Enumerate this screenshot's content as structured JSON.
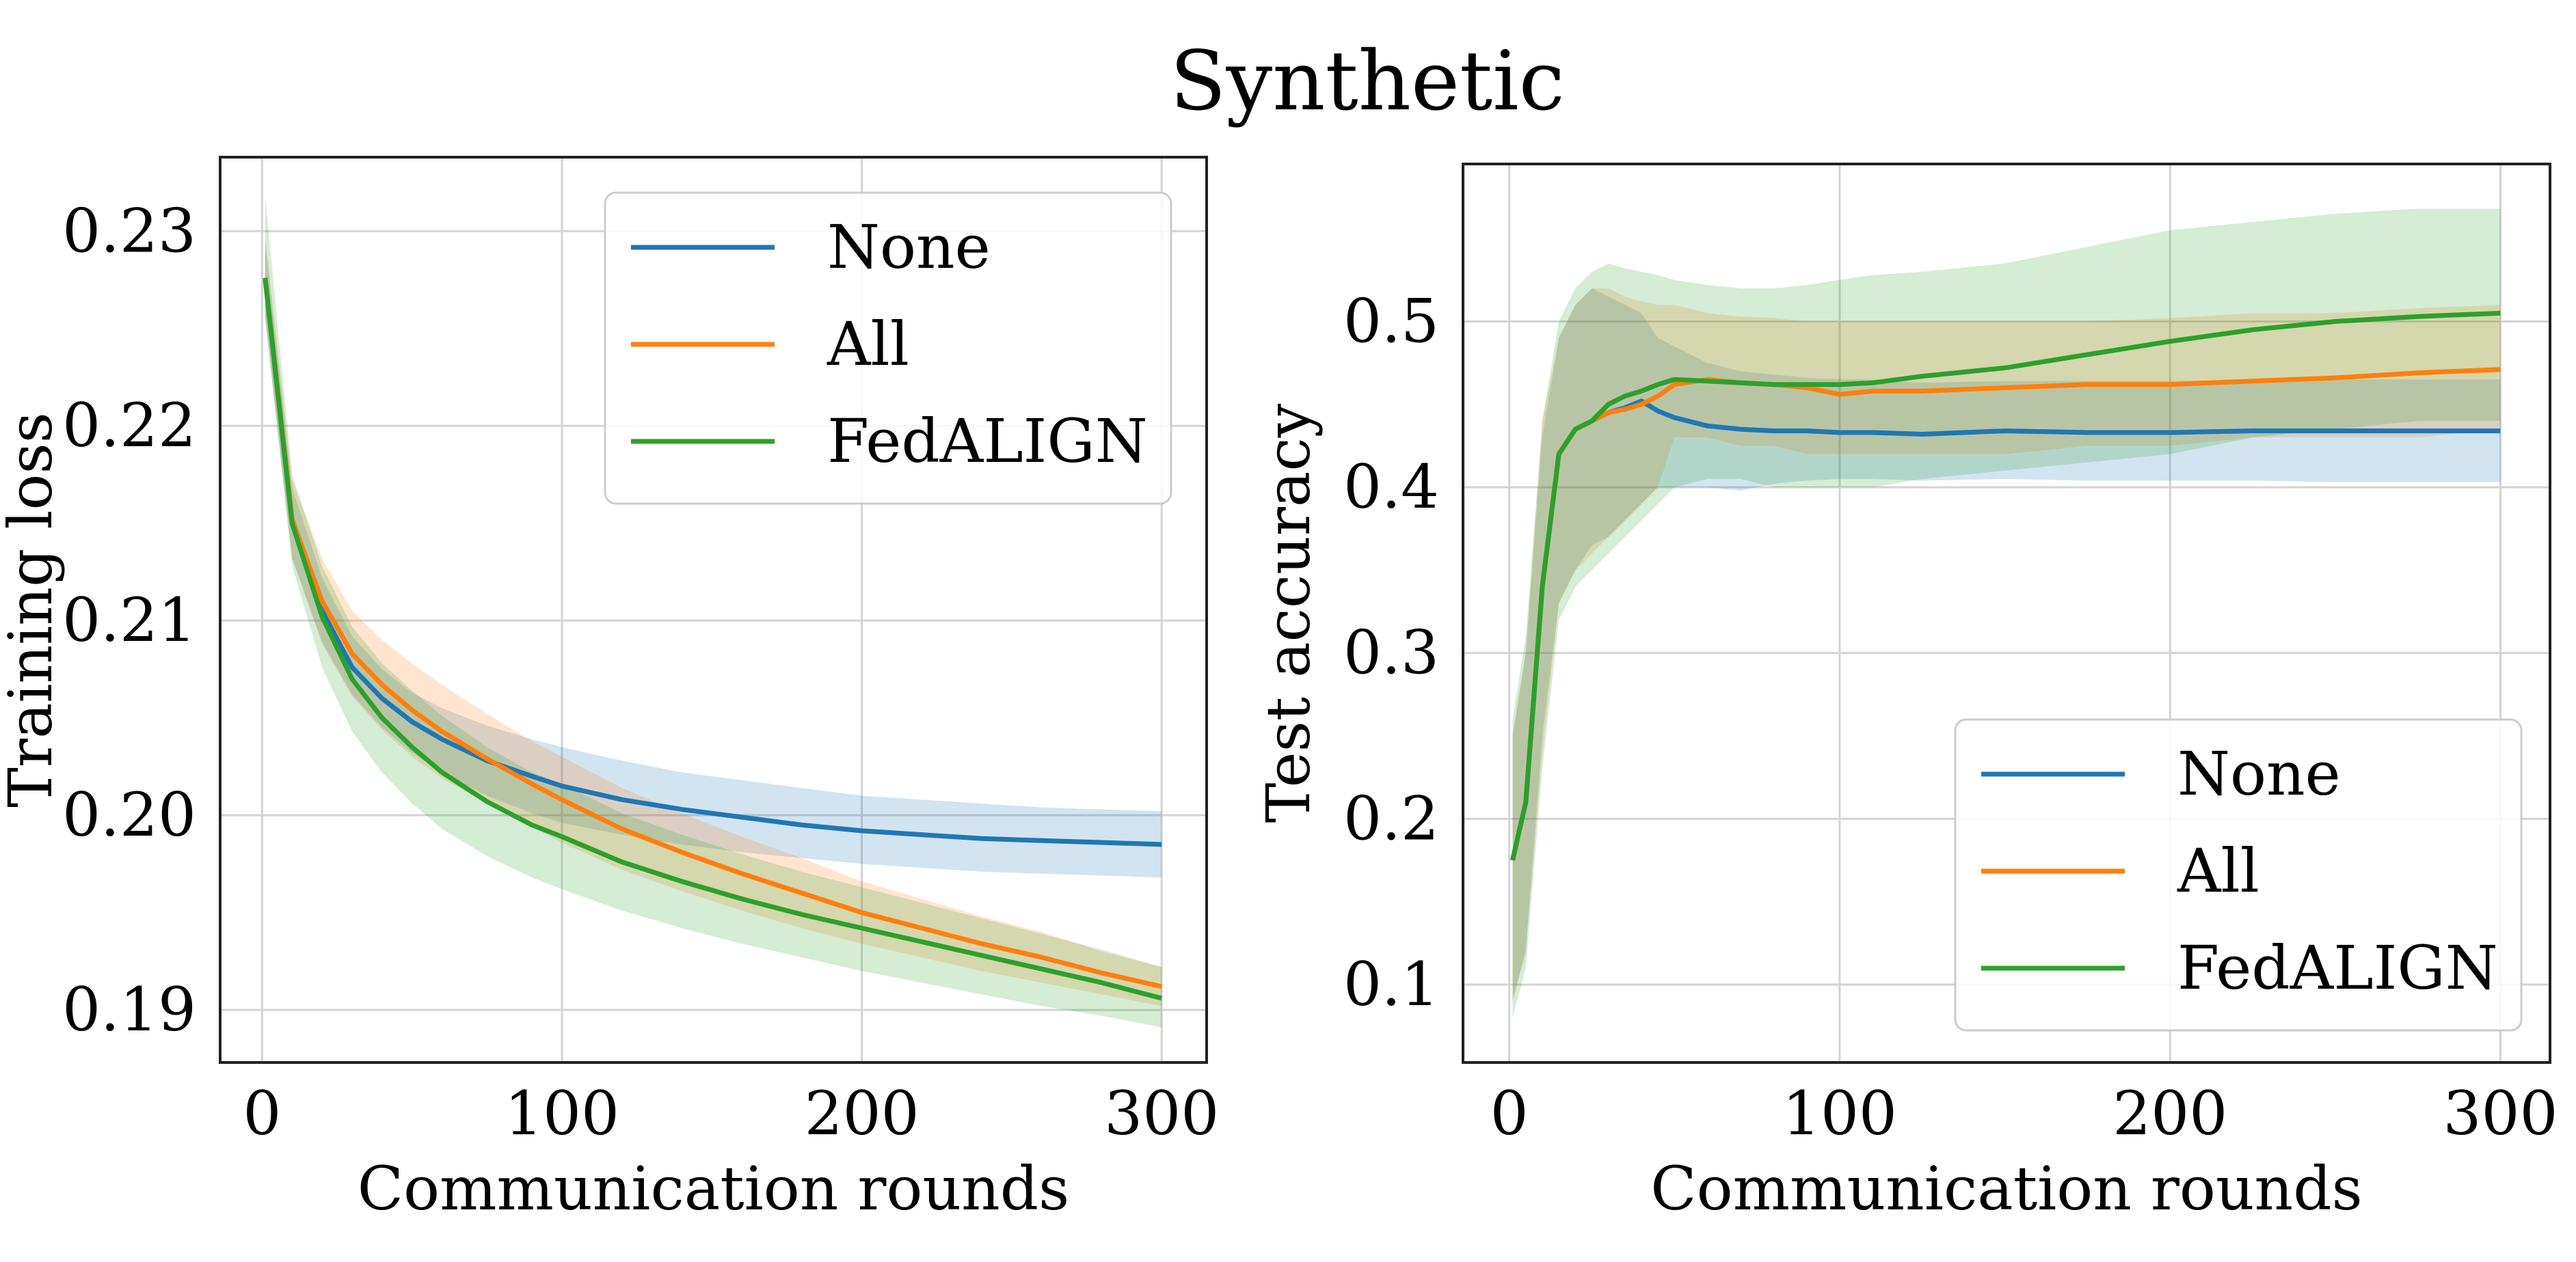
{
  "figure_title": "Synthetic",
  "colors": {
    "None": "#1f77b4",
    "All": "#ff7f0e",
    "FedALIGN": "#2ca02c",
    "grid": "#d3d3d3",
    "axis": "#222222"
  },
  "chart_data": [
    {
      "type": "line",
      "title": "",
      "xlabel": "Communication rounds",
      "ylabel": "Training loss",
      "xlim": [
        -14,
        315
      ],
      "ylim": [
        0.1873,
        0.2338
      ],
      "xticks": [
        0,
        100,
        200,
        300
      ],
      "xtick_labels": [
        "0",
        "100",
        "200",
        "300"
      ],
      "yticks": [
        0.19,
        0.2,
        0.21,
        0.22,
        0.23
      ],
      "ytick_labels": [
        "0.19",
        "0.20",
        "0.21",
        "0.22",
        "0.23"
      ],
      "grid": true,
      "legend_position": "top-right",
      "x": [
        1,
        10,
        20,
        30,
        40,
        50,
        60,
        75,
        90,
        100,
        120,
        140,
        160,
        180,
        200,
        220,
        240,
        260,
        280,
        300
      ],
      "series": [
        {
          "name": "None",
          "values": [
            0.2276,
            0.215,
            0.2105,
            0.2076,
            0.206,
            0.2048,
            0.2039,
            0.2028,
            0.202,
            0.2015,
            0.2008,
            0.2003,
            0.1999,
            0.1995,
            0.1992,
            0.199,
            0.1988,
            0.1987,
            0.1986,
            0.1985
          ],
          "lower": [
            0.2256,
            0.2132,
            0.2089,
            0.2062,
            0.2045,
            0.2032,
            0.2022,
            0.201,
            0.2001,
            0.1996,
            0.199,
            0.1985,
            0.1981,
            0.1978,
            0.1975,
            0.1973,
            0.1971,
            0.197,
            0.1969,
            0.1968
          ],
          "upper": [
            0.2296,
            0.2168,
            0.2122,
            0.2092,
            0.2075,
            0.2063,
            0.2055,
            0.2046,
            0.2039,
            0.2035,
            0.2028,
            0.2022,
            0.2018,
            0.2014,
            0.201,
            0.2008,
            0.2006,
            0.2004,
            0.2003,
            0.2002
          ]
        },
        {
          "name": "All",
          "values": [
            0.2276,
            0.2152,
            0.211,
            0.2083,
            0.2067,
            0.2054,
            0.2043,
            0.2029,
            0.2016,
            0.2008,
            0.1993,
            0.1981,
            0.197,
            0.196,
            0.195,
            0.1942,
            0.1934,
            0.1927,
            0.1919,
            0.1912
          ],
          "lower": [
            0.2256,
            0.2132,
            0.2088,
            0.2061,
            0.2044,
            0.203,
            0.2019,
            0.2006,
            0.1994,
            0.1986,
            0.1972,
            0.1961,
            0.1951,
            0.1942,
            0.1934,
            0.1927,
            0.192,
            0.1914,
            0.1908,
            0.1902
          ],
          "upper": [
            0.2296,
            0.2172,
            0.2132,
            0.2105,
            0.209,
            0.2078,
            0.2067,
            0.2052,
            0.2038,
            0.203,
            0.2014,
            0.2001,
            0.1989,
            0.1978,
            0.1966,
            0.1957,
            0.1948,
            0.194,
            0.193,
            0.1922
          ]
        },
        {
          "name": "FedALIGN",
          "values": [
            0.2276,
            0.215,
            0.2102,
            0.207,
            0.205,
            0.2035,
            0.2022,
            0.2007,
            0.1995,
            0.1989,
            0.1976,
            0.1966,
            0.1957,
            0.1949,
            0.1942,
            0.1935,
            0.1928,
            0.1921,
            0.1914,
            0.1906
          ],
          "lower": [
            0.2256,
            0.2128,
            0.2076,
            0.2043,
            0.2022,
            0.2006,
            0.1993,
            0.1979,
            0.1968,
            0.1962,
            0.1951,
            0.1942,
            0.1934,
            0.1927,
            0.192,
            0.1914,
            0.1908,
            0.1902,
            0.1897,
            0.1891
          ],
          "upper": [
            0.2318,
            0.2175,
            0.2128,
            0.2097,
            0.2078,
            0.2064,
            0.2051,
            0.2035,
            0.2022,
            0.2016,
            0.2001,
            0.199,
            0.198,
            0.1971,
            0.1963,
            0.1955,
            0.1947,
            0.1939,
            0.1931,
            0.1922
          ]
        }
      ]
    },
    {
      "type": "line",
      "title": "",
      "xlabel": "Communication rounds",
      "ylabel": "Test accuracy",
      "xlim": [
        -14,
        315
      ],
      "ylim": [
        0.053,
        0.595
      ],
      "xticks": [
        0,
        100,
        200,
        300
      ],
      "xtick_labels": [
        "0",
        "100",
        "200",
        "300"
      ],
      "yticks": [
        0.1,
        0.2,
        0.3,
        0.4,
        0.5
      ],
      "ytick_labels": [
        "0.1",
        "0.2",
        "0.3",
        "0.4",
        "0.5"
      ],
      "grid": true,
      "legend_position": "bottom-right",
      "x": [
        1,
        5,
        10,
        15,
        20,
        25,
        30,
        35,
        40,
        45,
        50,
        60,
        70,
        80,
        90,
        100,
        110,
        125,
        150,
        175,
        200,
        225,
        250,
        275,
        300
      ],
      "series": [
        {
          "name": "None",
          "values": [
            0.175,
            0.21,
            0.34,
            0.42,
            0.435,
            0.44,
            0.445,
            0.448,
            0.452,
            0.446,
            0.442,
            0.437,
            0.435,
            0.434,
            0.434,
            0.433,
            0.433,
            0.432,
            0.434,
            0.433,
            0.433,
            0.434,
            0.434,
            0.434,
            0.434
          ],
          "lower": [
            0.09,
            0.12,
            0.25,
            0.33,
            0.35,
            0.365,
            0.37,
            0.38,
            0.39,
            0.4,
            0.4,
            0.4,
            0.398,
            0.402,
            0.404,
            0.405,
            0.405,
            0.404,
            0.405,
            0.404,
            0.404,
            0.404,
            0.403,
            0.403,
            0.403
          ],
          "upper": [
            0.25,
            0.3,
            0.43,
            0.49,
            0.51,
            0.52,
            0.515,
            0.51,
            0.505,
            0.49,
            0.485,
            0.475,
            0.47,
            0.468,
            0.466,
            0.465,
            0.465,
            0.463,
            0.464,
            0.464,
            0.464,
            0.465,
            0.465,
            0.465,
            0.465
          ]
        },
        {
          "name": "All",
          "values": [
            0.175,
            0.21,
            0.34,
            0.42,
            0.435,
            0.44,
            0.445,
            0.447,
            0.45,
            0.455,
            0.462,
            0.465,
            0.463,
            0.462,
            0.46,
            0.456,
            0.458,
            0.458,
            0.46,
            0.462,
            0.462,
            0.464,
            0.466,
            0.469,
            0.471
          ],
          "lower": [
            0.09,
            0.12,
            0.24,
            0.33,
            0.35,
            0.36,
            0.37,
            0.38,
            0.39,
            0.4,
            0.43,
            0.43,
            0.425,
            0.425,
            0.42,
            0.42,
            0.42,
            0.42,
            0.42,
            0.425,
            0.425,
            0.43,
            0.43,
            0.43,
            0.435
          ],
          "upper": [
            0.25,
            0.3,
            0.44,
            0.49,
            0.51,
            0.52,
            0.52,
            0.515,
            0.512,
            0.51,
            0.51,
            0.505,
            0.503,
            0.502,
            0.5,
            0.5,
            0.5,
            0.5,
            0.5,
            0.5,
            0.502,
            0.505,
            0.505,
            0.508,
            0.51
          ]
        },
        {
          "name": "FedALIGN",
          "values": [
            0.175,
            0.21,
            0.34,
            0.42,
            0.435,
            0.44,
            0.45,
            0.455,
            0.458,
            0.462,
            0.465,
            0.464,
            0.463,
            0.462,
            0.462,
            0.462,
            0.463,
            0.467,
            0.472,
            0.48,
            0.488,
            0.495,
            0.5,
            0.503,
            0.505
          ],
          "lower": [
            0.08,
            0.11,
            0.23,
            0.32,
            0.34,
            0.35,
            0.36,
            0.37,
            0.38,
            0.39,
            0.4,
            0.405,
            0.405,
            0.4,
            0.4,
            0.4,
            0.4,
            0.405,
            0.41,
            0.415,
            0.42,
            0.43,
            0.435,
            0.44,
            0.44
          ],
          "upper": [
            0.26,
            0.31,
            0.44,
            0.5,
            0.52,
            0.53,
            0.535,
            0.532,
            0.53,
            0.528,
            0.525,
            0.522,
            0.52,
            0.52,
            0.522,
            0.525,
            0.528,
            0.53,
            0.535,
            0.545,
            0.555,
            0.56,
            0.565,
            0.568,
            0.568
          ]
        }
      ]
    }
  ]
}
